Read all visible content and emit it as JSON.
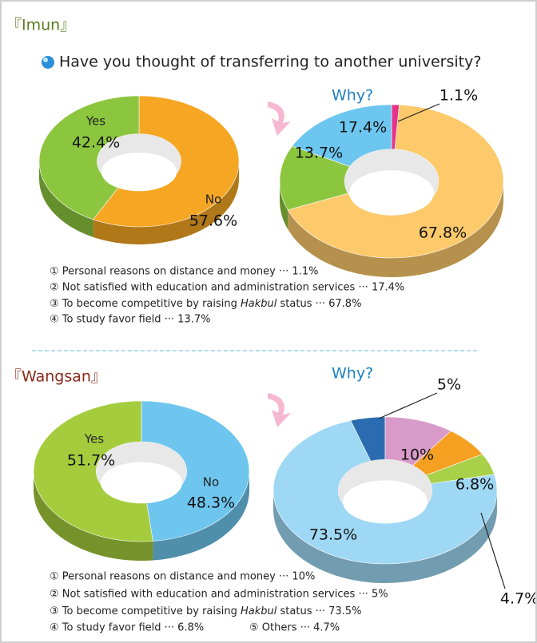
{
  "question": "Have you thought of transferring to another university?",
  "sections": [
    {
      "title": "『Imun』",
      "why": "Why?",
      "legend": [
        [
          "① Personal reasons on distance and money ··· 1.1%"
        ],
        [
          "② Not satisfied with education and administration services ··· 17.4%"
        ],
        [
          "③ To become competitive by raising ",
          "Hakbul",
          " status ··· 67.8%"
        ],
        [
          "④ To study favor field ··· 13.7%"
        ]
      ]
    },
    {
      "title": "『Wangsan』",
      "why": "Why?",
      "legend": [
        [
          "① Personal reasons on distance and money ··· 10%"
        ],
        [
          "② Not satisfied with education and administration services ··· 5%"
        ],
        [
          "③ To become competitive by raising ",
          "Hakbul",
          " status ··· 73.5%"
        ],
        [
          "④ To study favor field ··· 6.8%"
        ],
        [
          "⑤ Others ··· 4.7%"
        ]
      ]
    }
  ],
  "chart_data": [
    {
      "type": "pie",
      "categories": [
        "No",
        "Yes"
      ],
      "values": [
        57.6,
        42.4
      ],
      "value_labels": [
        "57.6%",
        "42.4%"
      ],
      "colors": [
        "#f5a623",
        "#8cc63f"
      ]
    },
    {
      "type": "pie",
      "values": [
        1.1,
        67.8,
        13.7,
        17.4
      ],
      "value_labels": [
        "1.1%",
        "67.8%",
        "13.7%",
        "17.4%"
      ],
      "colors": [
        "#e6338a",
        "#fcc96b",
        "#8cc63f",
        "#6cc6f0"
      ]
    },
    {
      "type": "pie",
      "categories": [
        "No",
        "Yes"
      ],
      "values": [
        48.3,
        51.7
      ],
      "value_labels": [
        "48.3%",
        "51.7%"
      ],
      "colors": [
        "#6ec6ef",
        "#a4cc3c"
      ]
    },
    {
      "type": "pie",
      "values": [
        5,
        10,
        6.8,
        4.7,
        73.5
      ],
      "value_labels": [
        "5%",
        "10%",
        "6.8%",
        "4.7%",
        "73.5%"
      ],
      "colors": [
        "#2b6cb0",
        "#d89ac8",
        "#f5a020",
        "#a8d048",
        "#9fd8f4"
      ]
    }
  ]
}
